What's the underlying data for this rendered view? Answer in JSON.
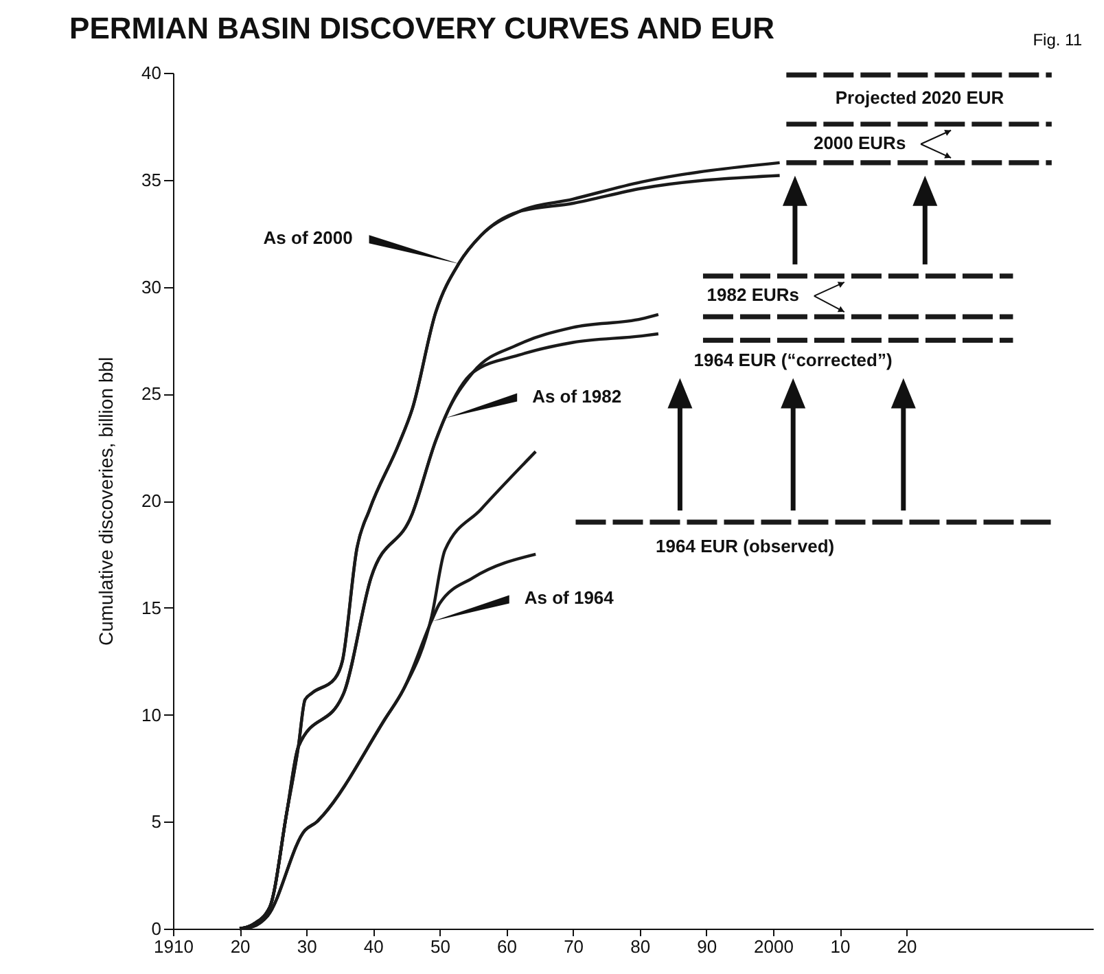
{
  "chart_data": {
    "type": "line",
    "title": "PERMIAN BASIN DISCOVERY CURVES AND EUR",
    "ylabel": "Cumulative discoveries, billion bbl",
    "xlim": [
      1910,
      2048
    ],
    "ylim": [
      0,
      40
    ],
    "xticks": [
      {
        "value": 1910,
        "label": "1910"
      },
      {
        "value": 1920,
        "label": "20"
      },
      {
        "value": 1930,
        "label": "30"
      },
      {
        "value": 1940,
        "label": "40"
      },
      {
        "value": 1950,
        "label": "50"
      },
      {
        "value": 1960,
        "label": "60"
      },
      {
        "value": 1970,
        "label": "70"
      },
      {
        "value": 1980,
        "label": "80"
      },
      {
        "value": 1990,
        "label": "90"
      },
      {
        "value": 2000,
        "label": "2000"
      },
      {
        "value": 2010,
        "label": "10"
      },
      {
        "value": 2020,
        "label": "20"
      }
    ],
    "yticks": [
      0,
      5,
      10,
      15,
      20,
      25,
      30,
      35,
      40
    ],
    "grid": false,
    "marker": "none",
    "line_style": "solid",
    "series": [
      {
        "color": "#1a1a1a",
        "x": [
          1920,
          1922,
          1924.5,
          1927.1,
          1928.8,
          1929.8,
          1930.8,
          1934.3,
          1935.4,
          1937.6,
          1939.5,
          1943.8,
          1945.9,
          1949.4,
          1952.9,
          1956.2,
          1961.8,
          1970,
          1980.3,
          2001
        ],
        "values": [
          0,
          0.2,
          1.0,
          5.5,
          8.5,
          10.7,
          11.0,
          11.7,
          12.5,
          17.8,
          19.6,
          22.6,
          24.3,
          28.8,
          31.1,
          32.4,
          33.5,
          34.1,
          34.9,
          35.8
        ]
      },
      {
        "color": "#1a1a1a",
        "x": [
          1920,
          1922,
          1924.5,
          1927.1,
          1928.8,
          1929.8,
          1930.8,
          1934.3,
          1935.4,
          1937.6,
          1939.5,
          1943.8,
          1945.9,
          1949.4,
          1952.9,
          1956.2,
          1961.8,
          1970,
          1980.3,
          2001
        ],
        "values": [
          0,
          0.2,
          1.0,
          5.5,
          8.5,
          10.7,
          11.0,
          11.7,
          12.5,
          17.8,
          19.6,
          22.6,
          24.3,
          28.8,
          31.1,
          32.4,
          33.5,
          33.9,
          34.6,
          35.2
        ]
      },
      {
        "color": "#1a1a1a",
        "x": [
          1920,
          1922,
          1924.5,
          1927.1,
          1928.8,
          1935.6,
          1939.7,
          1945.9,
          1949.4,
          1950.8,
          1955,
          1961.8,
          1970,
          1980.3,
          1982.8
        ],
        "values": [
          0,
          0.2,
          1.0,
          5.5,
          8.5,
          11.0,
          16.4,
          19.4,
          22.8,
          23.9,
          26.0,
          27.3,
          28.1,
          28.5,
          28.7
        ]
      },
      {
        "color": "#1a1a1a",
        "x": [
          1920,
          1922,
          1924.5,
          1927.1,
          1928.8,
          1935.6,
          1939.7,
          1945.9,
          1949.4,
          1950.8,
          1955,
          1961.8,
          1970,
          1980.3,
          1982.8
        ],
        "values": [
          0,
          0.2,
          1.0,
          5.5,
          8.5,
          11.0,
          16.4,
          19.4,
          22.8,
          23.9,
          26.0,
          26.8,
          27.4,
          27.7,
          27.8
        ]
      },
      {
        "color": "#1a1a1a",
        "x": [
          1920,
          1922,
          1924.2,
          1929.8,
          1931.6,
          1932.5,
          1941.8,
          1944.6,
          1948.8,
          1950.8,
          1956.2,
          1964.4
        ],
        "values": [
          0,
          0.1,
          0.6,
          4.6,
          5.0,
          5.3,
          9.8,
          11.2,
          14.6,
          17.7,
          19.6,
          22.3
        ]
      },
      {
        "color": "#1a1a1a",
        "x": [
          1920,
          1922,
          1924.2,
          1929.8,
          1931.6,
          1932.5,
          1941.8,
          1944.6,
          1948.8,
          1950,
          1955,
          1964.4
        ],
        "values": [
          0,
          0.1,
          0.6,
          4.6,
          5.0,
          5.3,
          9.8,
          11.2,
          14.4,
          15.2,
          16.4,
          17.5
        ]
      },
      {
        "color": "#1a1a1a",
        "line_style": "dashed",
        "x": [
          1970.4,
          2041.7
        ],
        "values": [
          19.0,
          19.0
        ]
      },
      {
        "color": "#1a1a1a",
        "line_style": "dashed",
        "x": [
          1989.5,
          2036
        ],
        "values": [
          27.5,
          27.5
        ]
      },
      {
        "color": "#1a1a1a",
        "line_style": "dashed",
        "x": [
          1989.5,
          2036
        ],
        "values": [
          28.6,
          28.6
        ]
      },
      {
        "color": "#1a1a1a",
        "line_style": "dashed",
        "x": [
          1989.5,
          2036
        ],
        "values": [
          30.5,
          30.5
        ]
      },
      {
        "color": "#1a1a1a",
        "line_style": "dashed",
        "x": [
          2002,
          2041.8
        ],
        "values": [
          35.8,
          35.8
        ]
      },
      {
        "color": "#1a1a1a",
        "line_style": "dashed",
        "x": [
          2002,
          2041.8
        ],
        "values": [
          37.6,
          37.6
        ]
      },
      {
        "color": "#1a1a1a",
        "line_style": "dashed",
        "x": [
          2002,
          2041.8
        ],
        "values": [
          39.9,
          39.9
        ]
      }
    ],
    "annotations": [
      {
        "text": "As of 2000",
        "x": 1952.9,
        "y": 31.1
      },
      {
        "text": "As of 1982",
        "x": 1950.8,
        "y": 23.9
      },
      {
        "text": "As of 1964",
        "x": 1948.8,
        "y": 14.4
      },
      {
        "text": "Projected 2020 EUR",
        "x": 2022,
        "y": 39.9
      },
      {
        "text": "2000 EURs",
        "x": 2013,
        "y": 37.6
      },
      {
        "text": "1982 EURs",
        "x": 1997,
        "y": 30.5
      },
      {
        "text": "1964 EUR (“corrected”)",
        "x": 2003,
        "y": 27.5
      },
      {
        "text": "1964 EUR (observed)",
        "x": 1995.8,
        "y": 19.0
      },
      "Fig. 11"
    ]
  }
}
